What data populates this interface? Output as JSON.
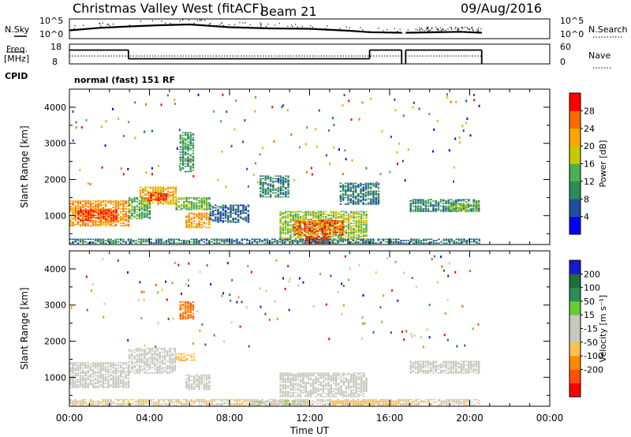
{
  "header": {
    "station": "Christmas Valley West (fitACF)",
    "beam": "Beam 21",
    "date": "09/Aug/2016"
  },
  "nsky_panel": {
    "label": "N.Sky",
    "left_ticks": [
      "10^5",
      "10^0"
    ],
    "right_ticks": [
      "10^5",
      "10^0"
    ],
    "right_label": "N.Search"
  },
  "freq_panel": {
    "label_line1": "Freq.",
    "label_line2": "[MHz]",
    "left_ticks": [
      "18",
      "8"
    ],
    "right_ticks": [
      "60",
      "0"
    ],
    "right_label": "Nave"
  },
  "cpid": {
    "label": "CPID",
    "value": "normal (fast) 151 RF"
  },
  "power_panel": {
    "ylabel": "Slant Range [km]",
    "yticks": [
      1000,
      2000,
      3000,
      4000
    ],
    "colorbar_label": "Power [dB]",
    "colorbar_ticks": [
      "4",
      "8",
      "12",
      "16",
      "20",
      "24",
      "28"
    ],
    "colors": [
      "#0000ff",
      "#1f4fa0",
      "#2e8b57",
      "#4caf50",
      "#c8c800",
      "#ffa500",
      "#ff6a00",
      "#ff0000"
    ]
  },
  "velocity_panel": {
    "ylabel": "Slant Range [km]",
    "yticks": [
      1000,
      2000,
      3000,
      4000
    ],
    "colorbar_label": "Velocity [m s⁻¹]",
    "colorbar_ticks": [
      "200",
      "100",
      "50",
      "15",
      "-15",
      "-50",
      "-100",
      "-200"
    ],
    "colors": [
      "#1a1acc",
      "#1f6e3c",
      "#2e8b57",
      "#66cc33",
      "#c8c8c0",
      "#c8c8c0",
      "#ffc04c",
      "#ff8c00",
      "#ff5000",
      "#ff0000"
    ]
  },
  "time_axis": {
    "xlabel": "Time UT",
    "ticks": [
      "00:00",
      "04:00",
      "08:00",
      "12:00",
      "16:00",
      "20:00",
      "00:00"
    ]
  },
  "chart_data": [
    {
      "type": "line",
      "name": "N.Sky",
      "xlim": [
        0,
        24
      ],
      "note_x_units": "hours UT",
      "segments": [
        {
          "x": [
            0.0,
            1.5,
            3.0,
            4.5,
            6.0,
            8.0,
            10.0,
            12.0,
            14.0,
            15.0,
            16.6
          ],
          "y": [
            0.42,
            0.55,
            0.62,
            0.68,
            0.72,
            0.58,
            0.52,
            0.5,
            0.4,
            0.33,
            0.3
          ]
        },
        {
          "x": [
            16.8,
            18.0,
            19.5,
            20.6
          ],
          "y": [
            0.3,
            0.32,
            0.35,
            0.3
          ]
        }
      ],
      "y_scale": "log 10^0 to 10^5 (normalized 0-1)"
    },
    {
      "type": "line",
      "name": "Freq.",
      "ylim_mhz": [
        8,
        18
      ],
      "segments": [
        {
          "x": [
            0.0,
            2.95
          ],
          "y": [
            15.0,
            15.0
          ]
        },
        {
          "x": [
            2.95,
            15.0
          ],
          "y": [
            10.6,
            10.6
          ]
        },
        {
          "x": [
            15.0,
            16.6
          ],
          "y": [
            15.0,
            15.0
          ]
        },
        {
          "x": [
            16.8,
            20.6
          ],
          "y": [
            15.0,
            15.0
          ]
        }
      ]
    },
    {
      "type": "heatmap",
      "name": "Power",
      "xlim": [
        0,
        24
      ],
      "ylim": [
        200,
        4500
      ],
      "clim": [
        0,
        30
      ],
      "patches": [
        {
          "x0": 0.0,
          "x1": 2.95,
          "r0": 700,
          "r1": 1400,
          "v": 22
        },
        {
          "x0": 0.4,
          "x1": 2.4,
          "r0": 850,
          "r1": 1150,
          "v": 27
        },
        {
          "x0": 2.95,
          "x1": 4.0,
          "r0": 900,
          "r1": 1500,
          "v": 12
        },
        {
          "x0": 3.5,
          "x1": 5.3,
          "r0": 1300,
          "r1": 1800,
          "v": 20
        },
        {
          "x0": 3.9,
          "x1": 4.9,
          "r0": 1400,
          "r1": 1650,
          "v": 27
        },
        {
          "x0": 5.3,
          "x1": 7.0,
          "r0": 1150,
          "r1": 1500,
          "v": 14
        },
        {
          "x0": 5.8,
          "x1": 7.0,
          "r0": 650,
          "r1": 1050,
          "v": 22
        },
        {
          "x0": 5.5,
          "x1": 6.2,
          "r0": 2200,
          "r1": 3300,
          "v": 11
        },
        {
          "x0": 7.0,
          "x1": 9.0,
          "r0": 800,
          "r1": 1300,
          "v": 7
        },
        {
          "x0": 10.5,
          "x1": 14.8,
          "r0": 300,
          "r1": 1100,
          "v": 15
        },
        {
          "x0": 11.2,
          "x1": 13.6,
          "r0": 450,
          "r1": 850,
          "v": 25
        },
        {
          "x0": 11.8,
          "x1": 13.0,
          "r0": 220,
          "r1": 420,
          "v": 29
        },
        {
          "x0": 9.5,
          "x1": 11.0,
          "r0": 1500,
          "r1": 2100,
          "v": 9
        },
        {
          "x0": 13.5,
          "x1": 15.5,
          "r0": 1300,
          "r1": 1900,
          "v": 8
        },
        {
          "x0": 0.0,
          "x1": 20.5,
          "r0": 220,
          "r1": 360,
          "v": 8
        },
        {
          "x0": 17.0,
          "x1": 20.5,
          "r0": 1100,
          "r1": 1450,
          "v": 9
        },
        {
          "x0": 19.0,
          "x1": 20.4,
          "r0": 1100,
          "r1": 1350,
          "v": 14
        }
      ]
    },
    {
      "type": "heatmap",
      "name": "Velocity",
      "xlim": [
        0,
        24
      ],
      "ylim": [
        200,
        4500
      ],
      "clim": [
        -250,
        250
      ],
      "patches": [
        {
          "x0": 0.0,
          "x1": 2.95,
          "r0": 700,
          "r1": 1400,
          "v": 0
        },
        {
          "x0": 2.95,
          "x1": 5.3,
          "r0": 1100,
          "r1": 1800,
          "v": 0
        },
        {
          "x0": 5.3,
          "x1": 6.2,
          "r0": 1450,
          "r1": 1650,
          "v": -80
        },
        {
          "x0": 5.8,
          "x1": 7.0,
          "r0": 650,
          "r1": 1050,
          "v": 0
        },
        {
          "x0": 5.5,
          "x1": 6.2,
          "r0": 2600,
          "r1": 3100,
          "v": -150
        },
        {
          "x0": 10.5,
          "x1": 14.8,
          "r0": 450,
          "r1": 1100,
          "v": 0
        },
        {
          "x0": 0.0,
          "x1": 20.5,
          "r0": 220,
          "r1": 400,
          "v": -40
        },
        {
          "x0": 9.0,
          "x1": 12.0,
          "r0": 220,
          "r1": 330,
          "v": 30
        },
        {
          "x0": 17.0,
          "x1": 20.5,
          "r0": 1100,
          "r1": 1450,
          "v": 0
        },
        {
          "x0": 13.0,
          "x1": 16.5,
          "r0": 220,
          "r1": 350,
          "v": -70
        }
      ]
    }
  ]
}
